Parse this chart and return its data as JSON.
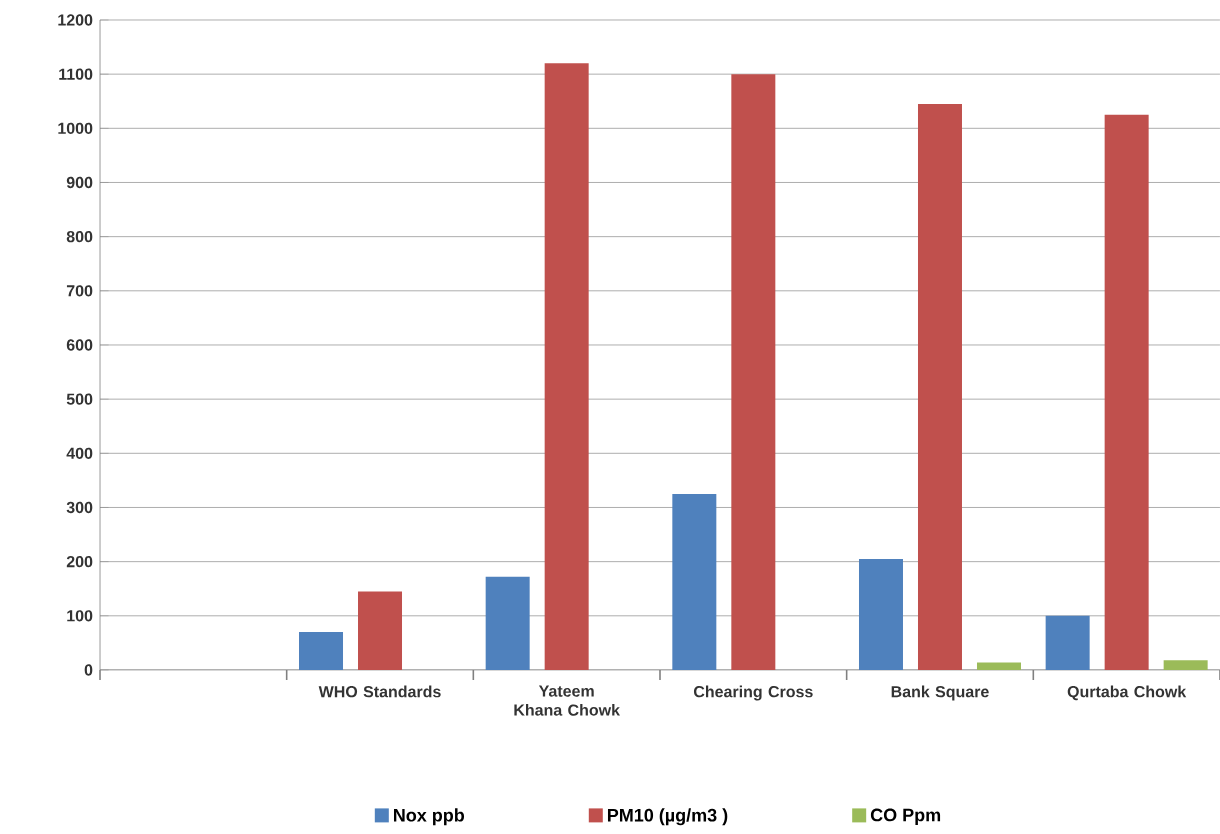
{
  "chart_data": {
    "type": "bar",
    "categories": [
      null,
      "WHO Standards",
      "Yateem Khana Chowk",
      "Chearing Cross",
      "Bank Square",
      "Qurtaba Chowk"
    ],
    "series": [
      {
        "name": "Nox ppb",
        "color": "#4f81bd",
        "values": [
          null,
          70,
          172,
          325,
          205,
          100
        ]
      },
      {
        "name": "PM10 (µg/m3 )",
        "color": "#c0504d",
        "values": [
          null,
          145,
          1120,
          1100,
          1045,
          1025
        ]
      },
      {
        "name": "CO Ppm",
        "color": "#9bbb59",
        "values": [
          null,
          null,
          null,
          null,
          14,
          18
        ]
      }
    ],
    "ylim": [
      0,
      1200
    ],
    "yticks": [
      0,
      100,
      200,
      300,
      400,
      500,
      600,
      700,
      800,
      900,
      1000,
      1100,
      1200
    ],
    "grid": "y",
    "legend": "bottom"
  }
}
